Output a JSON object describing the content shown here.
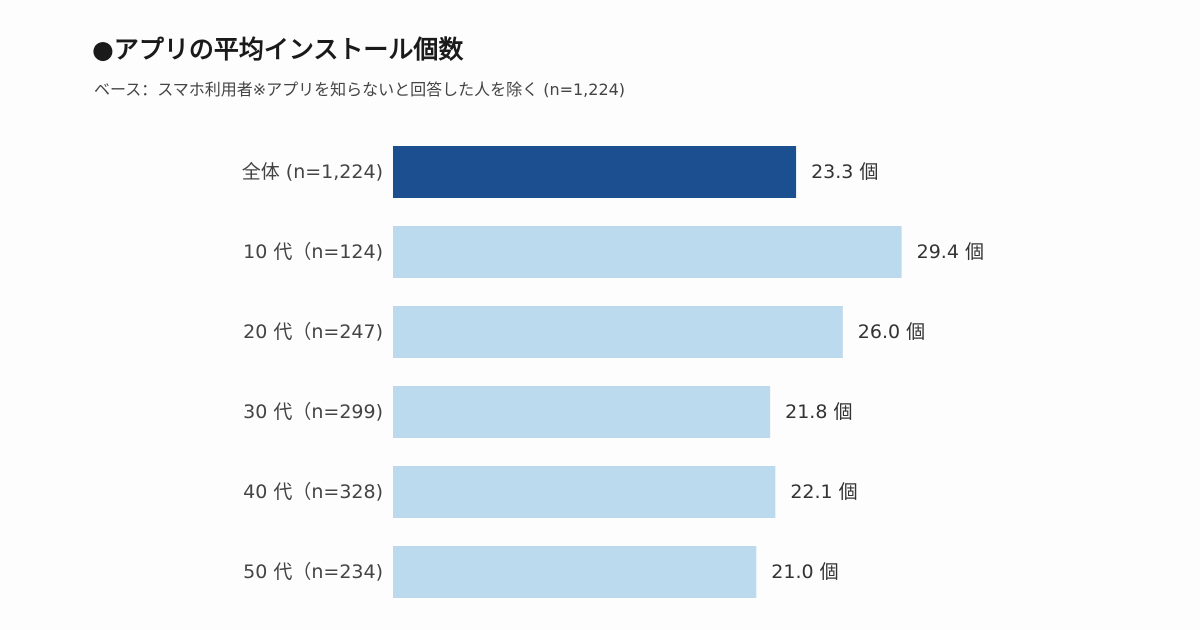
{
  "header": {
    "title": "●アプリの平均インストール個数",
    "subtitle": "ベース：スマホ利用者※アプリを知らないと回答した人を除く (n=1,224)"
  },
  "colors": {
    "highlight_bar": "#1b4f8f",
    "bar": "#bcdaee"
  },
  "chart_data": {
    "type": "bar",
    "orientation": "horizontal",
    "categories": [
      "全体 (n=1,224)",
      "10 代（n=124)",
      "20 代（n=247)",
      "30 代（n=299)",
      "40 代（n=328)",
      "50 代（n=234)"
    ],
    "values": [
      23.3,
      29.4,
      26.0,
      21.8,
      22.1,
      21.0
    ],
    "value_labels": [
      "23.3 個",
      "29.4 個",
      "26.0 個",
      "21.8 個",
      "22.1 個",
      "21.0 個"
    ],
    "unit": "個",
    "highlight_index": 0,
    "xlim": [
      0,
      30
    ],
    "grid": false,
    "legend": "none"
  }
}
